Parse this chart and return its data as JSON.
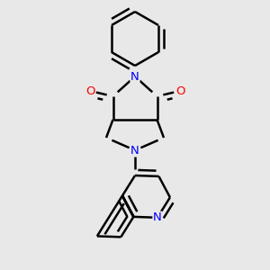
{
  "background_color": "#e8e8e8",
  "bond_color": "#000000",
  "nitrogen_color": "#0000ff",
  "oxygen_color": "#ff0000",
  "bond_width": 1.8,
  "dbo": 0.028,
  "figsize": [
    3.0,
    3.0
  ],
  "dpi": 100,
  "xlim": [
    -1.3,
    1.3
  ],
  "ylim": [
    -1.55,
    1.45
  ]
}
